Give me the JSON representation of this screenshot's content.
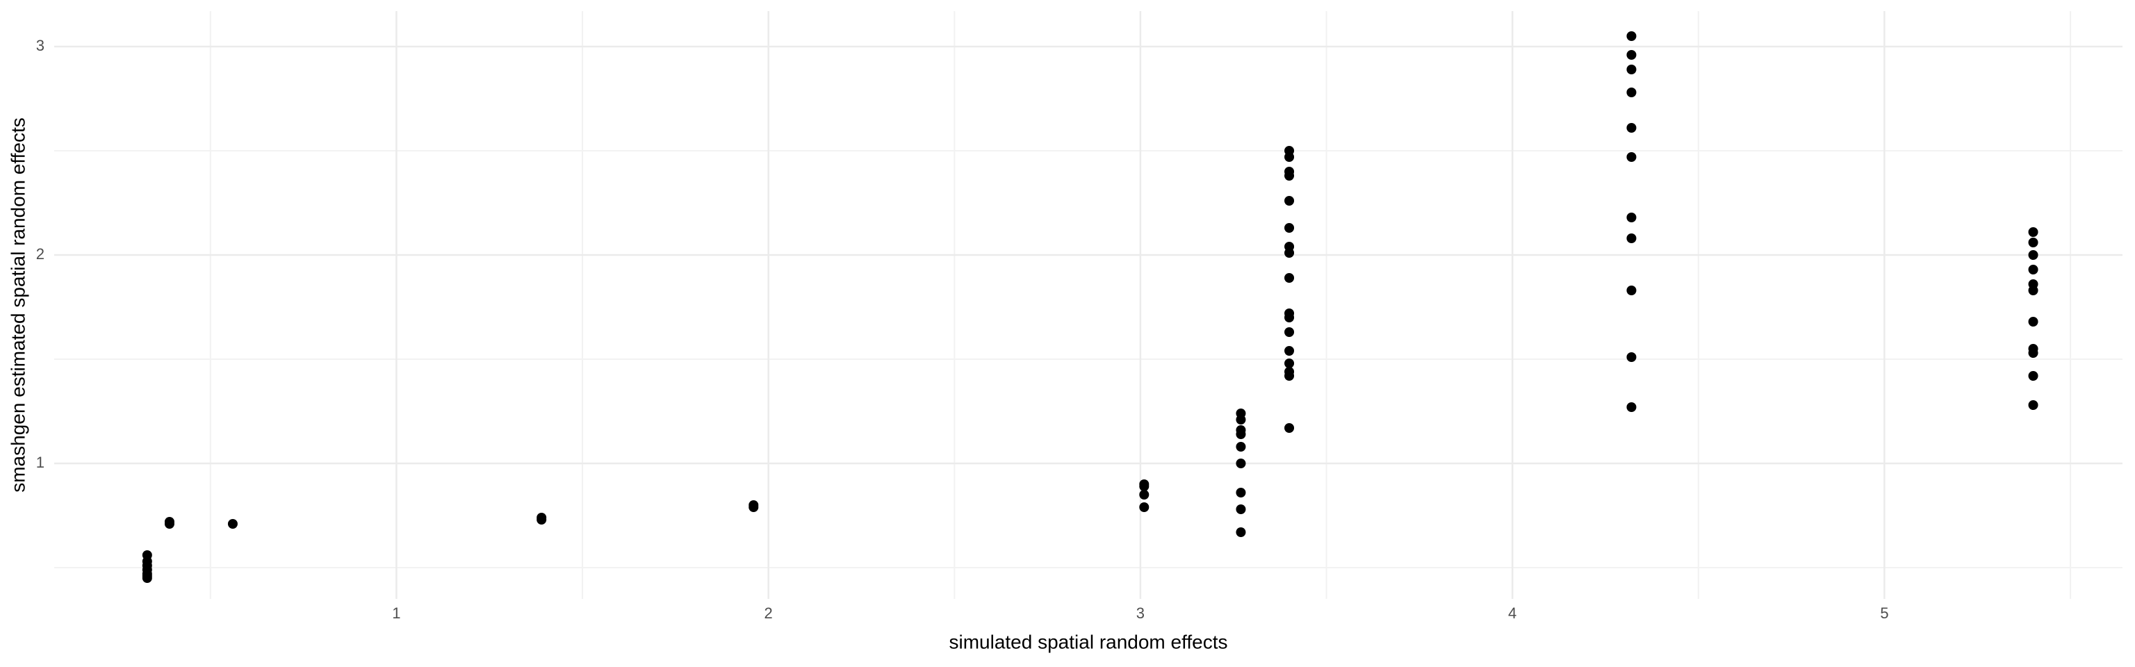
{
  "chart_data": {
    "type": "scatter",
    "x_label": "simulated spatial random effects",
    "y_label": "smashgen estimated spatial random effects",
    "x": [
      0.33,
      0.33,
      0.33,
      0.33,
      0.33,
      0.33,
      0.33,
      0.39,
      0.39,
      0.56,
      1.39,
      1.39,
      1.96,
      1.96,
      3.01,
      3.01,
      3.01,
      3.01,
      3.27,
      3.27,
      3.27,
      3.27,
      3.27,
      3.27,
      3.27,
      3.27,
      3.27,
      3.4,
      3.4,
      3.4,
      3.4,
      3.4,
      3.4,
      3.4,
      3.4,
      3.4,
      3.4,
      3.4,
      3.4,
      3.4,
      3.4,
      3.4,
      3.4,
      3.4,
      4.32,
      4.32,
      4.32,
      4.32,
      4.32,
      4.32,
      4.32,
      4.32,
      4.32,
      4.32,
      4.32,
      5.4,
      5.4,
      5.4,
      5.4,
      5.4,
      5.4,
      5.4,
      5.4,
      5.4,
      5.4,
      5.4
    ],
    "y": [
      0.56,
      0.53,
      0.51,
      0.49,
      0.47,
      0.46,
      0.45,
      0.72,
      0.71,
      0.71,
      0.74,
      0.73,
      0.8,
      0.79,
      0.9,
      0.89,
      0.85,
      0.79,
      1.24,
      1.21,
      1.16,
      1.14,
      1.08,
      1.0,
      0.86,
      0.78,
      0.67,
      2.5,
      2.47,
      2.4,
      2.38,
      2.26,
      2.13,
      2.04,
      2.01,
      1.89,
      1.72,
      1.7,
      1.63,
      1.54,
      1.48,
      1.44,
      1.42,
      1.17,
      3.05,
      2.96,
      2.89,
      2.78,
      2.61,
      2.47,
      2.18,
      2.08,
      1.83,
      1.51,
      1.27,
      2.11,
      2.06,
      2.0,
      1.93,
      1.86,
      1.83,
      1.68,
      1.55,
      1.53,
      1.42,
      1.28
    ],
    "color": "#000000",
    "xlim": [
      0.08,
      5.64
    ],
    "ylim": [
      0.35,
      3.17
    ],
    "xticks": [
      1,
      2,
      3,
      4,
      5
    ],
    "yticks": [
      1,
      2,
      3
    ],
    "grid": true
  }
}
